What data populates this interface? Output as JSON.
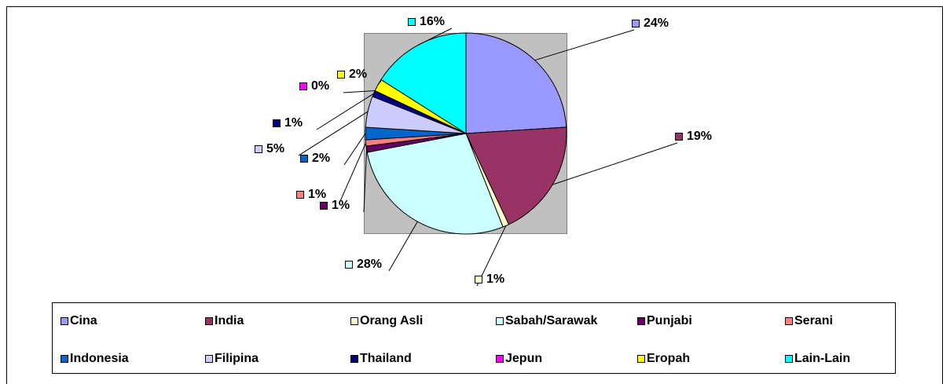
{
  "chart_data": {
    "type": "pie",
    "categories": [
      "Cina",
      "India",
      "Orang Asli",
      "Sabah/Sarawak",
      "Punjabi",
      "Serani",
      "Indonesia",
      "Filipina",
      "Thailand",
      "Jepun",
      "Eropah",
      "Lain-Lain"
    ],
    "values": [
      24,
      19,
      1,
      28,
      1,
      1,
      2,
      5,
      1,
      0,
      2,
      16
    ],
    "value_labels": [
      "24%",
      "19%",
      "1%",
      "28%",
      "1%",
      "1%",
      "2%",
      "5%",
      "1%",
      "0%",
      "2%",
      "16%"
    ],
    "colors": [
      "#9999ff",
      "#993366",
      "#ffffcc",
      "#ccffff",
      "#660066",
      "#ff8080",
      "#0066cc",
      "#ccccff",
      "#000080",
      "#ff00ff",
      "#ffff00",
      "#00ffff"
    ],
    "legend": "bottom"
  }
}
